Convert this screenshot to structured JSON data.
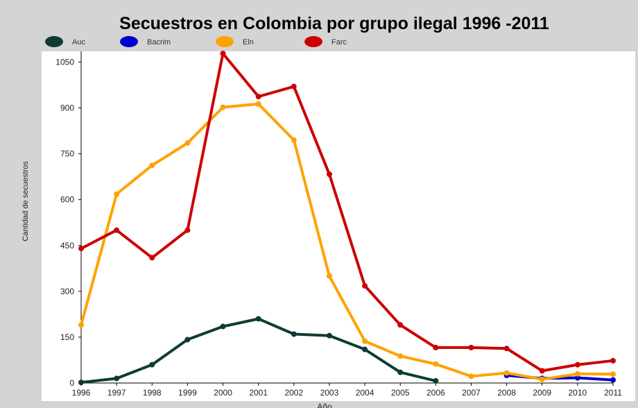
{
  "chart_data": {
    "type": "line",
    "title": "Secuestros en Colombia por grupo ilegal 1996 -2011",
    "xlabel": "Año",
    "ylabel": "Cantidad de secuestros",
    "x": [
      "1996",
      "1997",
      "1998",
      "1999",
      "2000",
      "2001",
      "2002",
      "2003",
      "2004",
      "2005",
      "2006",
      "2007",
      "2008",
      "2009",
      "2010",
      "2011"
    ],
    "yticks": [
      0,
      150,
      300,
      450,
      600,
      750,
      900,
      1050
    ],
    "ylim": [
      0,
      1085
    ],
    "grid": false,
    "legend_position": "top-left",
    "series": [
      {
        "name": "Auc",
        "color": "#0f3b36",
        "values": [
          2,
          15,
          60,
          142,
          185,
          210,
          160,
          155,
          110,
          35,
          7,
          null,
          null,
          null,
          null,
          null
        ]
      },
      {
        "name": "Bacrim",
        "color": "#0000cc",
        "values": [
          null,
          null,
          null,
          null,
          null,
          null,
          null,
          null,
          null,
          null,
          null,
          null,
          25,
          15,
          17,
          10
        ]
      },
      {
        "name": "Eln",
        "color": "#ffa200",
        "values": [
          190,
          618,
          712,
          785,
          902,
          913,
          795,
          350,
          137,
          88,
          62,
          22,
          33,
          12,
          30,
          29
        ]
      },
      {
        "name": "Farc",
        "color": "#cc0000",
        "values": [
          440,
          500,
          410,
          500,
          1078,
          937,
          970,
          683,
          318,
          190,
          116,
          116,
          113,
          40,
          60,
          73
        ]
      }
    ]
  }
}
